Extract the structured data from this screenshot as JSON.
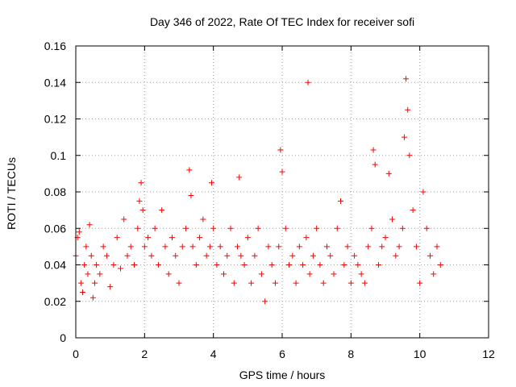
{
  "chart_data": {
    "type": "scatter",
    "title": "Day 346 of 2022, Rate Of TEC Index for receiver sofi",
    "xlabel": "GPS time / hours",
    "ylabel": "ROTI / TECUs",
    "xlim": [
      0,
      12
    ],
    "ylim": [
      0,
      0.16
    ],
    "xticks": [
      0,
      2,
      4,
      6,
      8,
      10,
      12
    ],
    "xtick_labels": [
      "0",
      "2",
      "4",
      "6",
      "8",
      "10",
      "12"
    ],
    "yticks": [
      0,
      0.02,
      0.04,
      0.06,
      0.08,
      0.1,
      0.12,
      0.14,
      0.16
    ],
    "ytick_labels": [
      "0",
      "0.02",
      "0.04",
      "0.06",
      "0.08",
      "0.1",
      "0.12",
      "0.14",
      "0.16"
    ],
    "grid": true,
    "marker": "+",
    "color": "#ff0000",
    "series": [
      {
        "name": "ROTI",
        "x": [
          0.0,
          0.05,
          0.1,
          0.15,
          0.2,
          0.25,
          0.3,
          0.35,
          0.4,
          0.45,
          0.5,
          0.55,
          0.6,
          0.7,
          0.8,
          0.9,
          1.0,
          1.1,
          1.2,
          1.3,
          1.4,
          1.5,
          1.6,
          1.7,
          1.8,
          1.85,
          1.9,
          1.95,
          2.0,
          2.1,
          2.2,
          2.3,
          2.4,
          2.5,
          2.6,
          2.7,
          2.8,
          2.9,
          3.0,
          3.1,
          3.2,
          3.3,
          3.35,
          3.4,
          3.5,
          3.6,
          3.7,
          3.8,
          3.9,
          3.95,
          4.0,
          4.1,
          4.2,
          4.3,
          4.4,
          4.5,
          4.6,
          4.7,
          4.75,
          4.8,
          4.9,
          5.0,
          5.1,
          5.2,
          5.3,
          5.4,
          5.5,
          5.6,
          5.7,
          5.8,
          5.9,
          5.95,
          6.0,
          6.1,
          6.2,
          6.3,
          6.4,
          6.5,
          6.6,
          6.7,
          6.75,
          6.8,
          6.9,
          7.0,
          7.1,
          7.2,
          7.3,
          7.4,
          7.5,
          7.6,
          7.7,
          7.8,
          7.9,
          8.0,
          8.1,
          8.2,
          8.3,
          8.4,
          8.5,
          8.6,
          8.65,
          8.7,
          8.8,
          8.9,
          9.0,
          9.1,
          9.2,
          9.3,
          9.4,
          9.5,
          9.55,
          9.6,
          9.65,
          9.7,
          9.8,
          9.9,
          10.0,
          10.1,
          10.2,
          10.3,
          10.4,
          10.5,
          10.6
        ],
        "y": [
          0.045,
          0.055,
          0.058,
          0.03,
          0.025,
          0.04,
          0.05,
          0.035,
          0.062,
          0.045,
          0.022,
          0.03,
          0.04,
          0.035,
          0.05,
          0.045,
          0.028,
          0.04,
          0.055,
          0.038,
          0.065,
          0.045,
          0.05,
          0.04,
          0.06,
          0.075,
          0.085,
          0.07,
          0.05,
          0.055,
          0.045,
          0.06,
          0.04,
          0.07,
          0.05,
          0.035,
          0.055,
          0.045,
          0.03,
          0.05,
          0.06,
          0.092,
          0.078,
          0.05,
          0.04,
          0.055,
          0.065,
          0.045,
          0.05,
          0.085,
          0.06,
          0.04,
          0.05,
          0.035,
          0.045,
          0.06,
          0.03,
          0.05,
          0.088,
          0.045,
          0.04,
          0.055,
          0.03,
          0.045,
          0.06,
          0.035,
          0.02,
          0.05,
          0.04,
          0.03,
          0.05,
          0.103,
          0.091,
          0.06,
          0.04,
          0.045,
          0.03,
          0.05,
          0.04,
          0.055,
          0.14,
          0.035,
          0.045,
          0.06,
          0.04,
          0.03,
          0.05,
          0.045,
          0.035,
          0.06,
          0.075,
          0.04,
          0.05,
          0.03,
          0.045,
          0.04,
          0.035,
          0.03,
          0.05,
          0.06,
          0.103,
          0.095,
          0.04,
          0.05,
          0.055,
          0.09,
          0.065,
          0.045,
          0.05,
          0.06,
          0.11,
          0.142,
          0.125,
          0.1,
          0.07,
          0.05,
          0.03,
          0.08,
          0.06,
          0.045,
          0.035,
          0.05,
          0.04
        ]
      }
    ]
  }
}
